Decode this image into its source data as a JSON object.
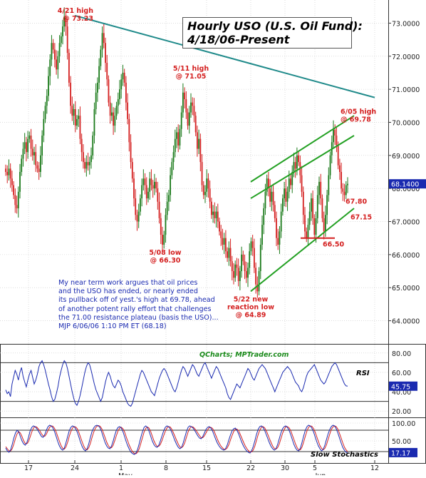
{
  "title": {
    "line1": "Hourly USO (U.S. Oil Fund):",
    "line2": "4/18/06-Present"
  },
  "commentary": [
    "My near term work argues that oil prices",
    "and the USO has ended, or nearly ended",
    "its pullback off of yest.'s high at 69.78, ahead",
    "of another potent rally effort that challenges",
    "the 71.00 resistance plateau (basis the USO)...",
    "MJP 6/06/06 1:10 PM ET  (68.18)"
  ],
  "watermark": "QCharts; MPTrader.com",
  "colors": {
    "up": "#1a7a1a",
    "down": "#d42020",
    "annotation": "#d42020",
    "commentary": "#1a2ab0",
    "trendline_resistance": "#1f8a8a",
    "channel": "#22a022",
    "support": "#d42020",
    "rsi_line": "#1a2ab0",
    "stoch_k": "#1a2ab0",
    "stoch_d": "#d42020",
    "last_price_tag": "#1a2ab0"
  },
  "chart_data": [
    {
      "type": "candlestick",
      "name": "price",
      "ylim": [
        63.3,
        73.7
      ],
      "yticks": [
        64.0,
        65.0,
        66.0,
        67.0,
        68.0,
        69.0,
        70.0,
        71.0,
        72.0,
        73.0
      ],
      "ytick_labels": [
        "64.0000",
        "65.0000",
        "66.0000",
        "67.0000",
        "68.0000",
        "69.0000",
        "70.0000",
        "71.0000",
        "72.0000",
        "73.0000"
      ],
      "last_price": 68.14,
      "last_price_label": "68.1400",
      "xlim": [
        0,
        575
      ],
      "x_ticks": [
        {
          "x": 40,
          "label": "17"
        },
        {
          "x": 105,
          "label": "24"
        },
        {
          "x": 170,
          "label": "1"
        },
        {
          "x": 233,
          "label": "8"
        },
        {
          "x": 290,
          "label": "15"
        },
        {
          "x": 352,
          "label": "22"
        },
        {
          "x": 400,
          "label": "30"
        },
        {
          "x": 442,
          "label": "5"
        },
        {
          "x": 526,
          "label": "12"
        }
      ],
      "month_labels": [
        {
          "x": 176,
          "label": "May"
        },
        {
          "x": 450,
          "label": "Jun"
        }
      ],
      "closes": [
        68.5,
        68.4,
        68.6,
        68.3,
        68.1,
        67.8,
        67.5,
        67.4,
        67.9,
        68.5,
        68.9,
        69.2,
        69.4,
        69.1,
        69.5,
        69.6,
        69.2,
        69.0,
        69.1,
        68.7,
        68.6,
        68.5,
        69.0,
        69.6,
        70.1,
        70.5,
        70.8,
        71.4,
        71.9,
        72.4,
        72.2,
        71.9,
        71.6,
        72.0,
        72.4,
        72.6,
        72.9,
        73.2,
        72.9,
        72.1,
        71.2,
        70.5,
        70.2,
        70.4,
        69.9,
        70.1,
        70.2,
        69.5,
        69.1,
        68.8,
        68.6,
        68.8,
        68.7,
        68.8,
        69.0,
        69.6,
        70.4,
        70.9,
        71.2,
        71.7,
        72.2,
        72.7,
        72.4,
        71.8,
        71.3,
        70.6,
        70.2,
        70.3,
        69.9,
        70.2,
        70.5,
        70.7,
        71.0,
        71.3,
        71.5,
        71.2,
        70.6,
        70.1,
        69.4,
        68.8,
        68.3,
        67.7,
        67.2,
        67.0,
        67.3,
        67.7,
        68.1,
        68.3,
        68.1,
        67.7,
        67.9,
        68.3,
        68.1,
        68.0,
        68.2,
        68.0,
        67.6,
        67.1,
        66.6,
        66.3,
        66.6,
        67.2,
        67.6,
        67.8,
        68.4,
        68.8,
        69.1,
        69.5,
        69.7,
        69.3,
        69.8,
        70.3,
        70.9,
        70.7,
        70.3,
        69.9,
        70.3,
        70.6,
        70.5,
        70.2,
        69.7,
        69.2,
        69.5,
        68.8,
        68.1,
        67.8,
        67.9,
        68.3,
        68.0,
        67.6,
        67.2,
        67.3,
        67.1,
        67.3,
        67.0,
        66.7,
        66.5,
        66.3,
        66.5,
        66.1,
        65.9,
        66.2,
        65.8,
        65.5,
        65.3,
        65.7,
        65.6,
        65.2,
        65.5,
        66.0,
        65.8,
        65.5,
        65.3,
        65.6,
        66.1,
        66.4,
        66.2,
        65.6,
        65.1,
        64.89,
        65.5,
        66.3,
        66.9,
        67.4,
        67.9,
        68.3,
        68.0,
        67.6,
        67.9,
        67.5,
        67.1,
        66.5,
        66.3,
        66.7,
        67.3,
        67.7,
        68.0,
        67.6,
        67.9,
        68.3,
        68.1,
        68.5,
        68.8,
        68.6,
        69.0,
        68.8,
        68.4,
        67.9,
        67.2,
        66.7,
        66.5,
        66.9,
        67.3,
        67.7,
        67.1,
        66.6,
        67.1,
        67.8,
        68.2,
        67.7,
        67.1,
        66.7,
        67.2,
        67.8,
        68.4,
        69.0,
        69.4,
        69.78,
        69.6,
        69.3,
        68.7,
        68.5,
        68.0,
        67.9,
        67.8,
        68.1,
        68.14
      ],
      "resistance_trendline": {
        "from": {
          "x": 105,
          "y": 73.23
        },
        "to": {
          "x": 526,
          "y": 70.75
        }
      },
      "channel_upper_lines": [
        {
          "from": {
            "x": 352,
            "y": 68.2
          },
          "to": {
            "x": 497,
            "y": 70.2
          }
        },
        {
          "from": {
            "x": 352,
            "y": 67.7
          },
          "to": {
            "x": 497,
            "y": 69.6
          }
        }
      ],
      "channel_lower_line": {
        "from": {
          "x": 352,
          "y": 64.89
        },
        "to": {
          "x": 497,
          "y": 67.4
        }
      },
      "support_line": {
        "from": {
          "x": 422,
          "y": 66.5
        },
        "to": {
          "x": 470,
          "y": 66.5
        }
      },
      "annotations": [
        {
          "text": [
            "4/21 high",
            "@ 73.23"
          ],
          "x": 105,
          "y": 73.23,
          "anchor": "below-left"
        },
        {
          "text": [
            "5/11 high",
            "@ 71.05"
          ],
          "x": 268,
          "y": 71.05,
          "anchor": "above"
        },
        {
          "text": [
            "5/08 low",
            "@ 66.30"
          ],
          "x": 232,
          "y": 66.3,
          "anchor": "below"
        },
        {
          "text": [
            "5/22 new",
            "reaction low",
            "@ 64.89"
          ],
          "x": 352,
          "y": 64.89,
          "anchor": "below"
        },
        {
          "text": [
            "6/05 high",
            "@ 69.78"
          ],
          "x": 470,
          "y": 69.78,
          "anchor": "above-right"
        },
        {
          "text": [
            "67.80"
          ],
          "x": 481,
          "y": 67.8,
          "anchor": "below-right"
        },
        {
          "text": [
            "67.15"
          ],
          "x": 488,
          "y": 67.15,
          "anchor": "right"
        },
        {
          "text": [
            "66.50"
          ],
          "x": 449,
          "y": 66.5,
          "anchor": "below-right"
        }
      ]
    },
    {
      "type": "line",
      "name": "RSI",
      "label": "RSI",
      "ylim": [
        15,
        85
      ],
      "yticks": [
        20,
        40,
        60,
        80
      ],
      "ytick_labels": [
        "20.00",
        "40.00",
        "60.00",
        "80.00"
      ],
      "reference_lines": [
        30,
        70
      ],
      "last_value": 45.75,
      "last_value_label": "45.75",
      "values": [
        42,
        38,
        40,
        35,
        48,
        55,
        62,
        58,
        52,
        60,
        65,
        56,
        50,
        45,
        52,
        58,
        62,
        55,
        48,
        52,
        58,
        66,
        70,
        72,
        68,
        62,
        55,
        48,
        42,
        35,
        30,
        32,
        38,
        45,
        55,
        62,
        68,
        72,
        70,
        64,
        56,
        48,
        40,
        33,
        28,
        26,
        30,
        36,
        44,
        52,
        60,
        66,
        70,
        68,
        62,
        55,
        48,
        42,
        38,
        34,
        30,
        34,
        42,
        50,
        56,
        60,
        56,
        50,
        46,
        44,
        48,
        52,
        50,
        46,
        40,
        36,
        32,
        28,
        26,
        25,
        28,
        34,
        40,
        46,
        52,
        58,
        62,
        60,
        56,
        52,
        48,
        44,
        40,
        38,
        36,
        42,
        48,
        54,
        58,
        62,
        64,
        62,
        58,
        54,
        50,
        46,
        42,
        40,
        44,
        50,
        56,
        62,
        66,
        64,
        60,
        56,
        60,
        64,
        68,
        66,
        62,
        58,
        56,
        60,
        64,
        68,
        70,
        66,
        62,
        58,
        54,
        58,
        62,
        66,
        64,
        60,
        56,
        52,
        48,
        44,
        38,
        34,
        32,
        36,
        40,
        44,
        48,
        46,
        44,
        48,
        52,
        56,
        60,
        64,
        62,
        58,
        54,
        52,
        56,
        60,
        64,
        66,
        68,
        66,
        64,
        60,
        56,
        52,
        48,
        44,
        40,
        44,
        48,
        52,
        56,
        60,
        62,
        64,
        66,
        64,
        62,
        58,
        54,
        50,
        48,
        46,
        42,
        40,
        44,
        50,
        56,
        60,
        62,
        64,
        66,
        68,
        64,
        60,
        56,
        52,
        50,
        48,
        50,
        54,
        58,
        62,
        66,
        68,
        70,
        68,
        64,
        60,
        56,
        52,
        48,
        46,
        45.75
      ]
    },
    {
      "type": "line",
      "name": "Slow Stochastics",
      "label": "Slow Stochastics",
      "ylim": [
        0,
        110
      ],
      "yticks": [
        50,
        100
      ],
      "ytick_labels": [
        "50.00",
        "100.00"
      ],
      "reference_lines": [
        20,
        80
      ],
      "last_value": 17.17,
      "last_value_label": "17.17",
      "k": [
        30,
        22,
        18,
        25,
        40,
        58,
        72,
        80,
        75,
        62,
        50,
        42,
        38,
        45,
        60,
        78,
        88,
        92,
        90,
        85,
        78,
        70,
        62,
        60,
        68,
        80,
        90,
        94,
        92,
        86,
        76,
        62,
        48,
        36,
        28,
        24,
        30,
        45,
        62,
        78,
        88,
        92,
        90,
        84,
        74,
        60,
        46,
        34,
        26,
        22,
        28,
        42,
        60,
        76,
        86,
        92,
        94,
        92,
        86,
        74,
        60,
        46,
        36,
        30,
        28,
        36,
        50,
        66,
        80,
        88,
        90,
        86,
        76,
        62,
        48,
        36,
        26,
        18,
        14,
        12,
        16,
        26,
        42,
        60,
        76,
        88,
        92,
        88,
        78,
        64,
        50,
        40,
        34,
        32,
        38,
        50,
        64,
        78,
        88,
        92,
        90,
        84,
        74,
        62,
        50,
        40,
        32,
        28,
        32,
        44,
        60,
        76,
        88,
        92,
        90,
        86,
        80,
        72,
        64,
        58,
        56,
        62,
        72,
        82,
        88,
        90,
        86,
        78,
        66,
        54,
        44,
        36,
        30,
        26,
        24,
        28,
        38,
        52,
        66,
        78,
        84,
        86,
        80,
        70,
        58,
        46,
        36,
        28,
        22,
        18,
        16,
        22,
        34,
        50,
        68,
        82,
        90,
        92,
        88,
        80,
        68,
        56,
        44,
        34,
        28,
        24,
        28,
        40,
        56,
        72,
        84,
        90,
        92,
        88,
        80,
        68,
        54,
        40,
        30,
        24,
        22,
        30,
        46,
        64,
        80,
        90,
        94,
        92,
        86,
        76,
        62,
        48,
        36,
        28,
        22,
        26,
        38,
        54,
        70,
        82,
        90,
        94,
        92,
        84,
        72,
        58,
        44,
        32,
        24,
        18,
        17.17
      ],
      "d": [
        34,
        28,
        22,
        22,
        28,
        41,
        57,
        70,
        76,
        72,
        62,
        51,
        43,
        42,
        48,
        61,
        75,
        86,
        90,
        89,
        84,
        78,
        70,
        64,
        63,
        69,
        79,
        88,
        92,
        91,
        85,
        75,
        62,
        49,
        37,
        29,
        27,
        33,
        46,
        62,
        76,
        86,
        90,
        89,
        84,
        73,
        60,
        47,
        35,
        27,
        25,
        31,
        43,
        59,
        74,
        85,
        91,
        93,
        91,
        84,
        73,
        60,
        47,
        37,
        31,
        31,
        38,
        51,
        65,
        78,
        86,
        88,
        84,
        75,
        62,
        49,
        37,
        27,
        19,
        15,
        14,
        18,
        28,
        43,
        59,
        75,
        85,
        89,
        86,
        77,
        64,
        51,
        41,
        35,
        35,
        40,
        51,
        64,
        77,
        86,
        90,
        89,
        83,
        73,
        62,
        51,
        41,
        33,
        31,
        35,
        45,
        60,
        75,
        85,
        90,
        89,
        85,
        79,
        72,
        65,
        59,
        59,
        64,
        72,
        81,
        87,
        88,
        85,
        77,
        66,
        55,
        45,
        37,
        31,
        27,
        26,
        30,
        39,
        52,
        65,
        76,
        83,
        83,
        79,
        69,
        58,
        47,
        37,
        29,
        23,
        19,
        19,
        24,
        35,
        51,
        67,
        80,
        88,
        90,
        87,
        79,
        68,
        56,
        45,
        35,
        29,
        27,
        31,
        41,
        56,
        71,
        82,
        89,
        90,
        87,
        79,
        67,
        54,
        41,
        31,
        25,
        25,
        33,
        47,
        63,
        78,
        88,
        92,
        91,
        85,
        75,
        62,
        49,
        37,
        29,
        25,
        29,
        39,
        54,
        69,
        82,
        89,
        92,
        90,
        83,
        71,
        58,
        45,
        33,
        25,
        20
      ]
    }
  ]
}
